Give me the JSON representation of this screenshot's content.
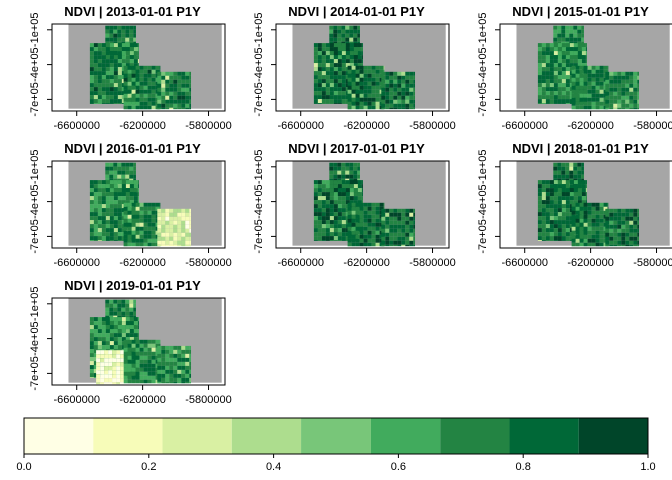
{
  "chart_data": {
    "type": "heatmap",
    "variable": "NDVI",
    "panels": [
      {
        "title": "NDVI | 2013-01-01 P1Y",
        "year": 2013,
        "mean_ndvi": 0.76,
        "patches": []
      },
      {
        "title": "NDVI | 2014-01-01 P1Y",
        "year": 2014,
        "mean_ndvi": 0.8,
        "patches": []
      },
      {
        "title": "NDVI | 2015-01-01 P1Y",
        "year": 2015,
        "mean_ndvi": 0.74,
        "patches": []
      },
      {
        "title": "NDVI | 2016-01-01 P1Y",
        "year": 2016,
        "mean_ndvi": 0.74,
        "patches": [
          {
            "tile": "east",
            "value": 0.3
          }
        ]
      },
      {
        "title": "NDVI | 2017-01-01 P1Y",
        "year": 2017,
        "mean_ndvi": 0.8,
        "patches": []
      },
      {
        "title": "NDVI | 2018-01-01 P1Y",
        "year": 2018,
        "mean_ndvi": 0.8,
        "patches": []
      },
      {
        "title": "NDVI | 2019-01-01 P1Y",
        "year": 2019,
        "mean_ndvi": 0.72,
        "patches": [
          {
            "tile": "southwest",
            "value": 0.15
          }
        ]
      }
    ],
    "x_ticks": [
      "-6600000",
      "-6200000",
      "-5800000"
    ],
    "x_tick_values": [
      -6600000,
      -6200000,
      -5800000
    ],
    "y_ticks": [
      "-7e+05",
      "-4e+05",
      "-1e+05"
    ],
    "y_tick_values": [
      -700000,
      -400000,
      -100000
    ],
    "xlim": [
      -6750000,
      -5700000
    ],
    "ylim": [
      -800000,
      -50000
    ],
    "extent_x": [
      -6650000,
      -5720000
    ],
    "extent_y": [
      -780000,
      -40000
    ],
    "nodata_color": "#a6a6a6",
    "colorbar": {
      "breaks": [
        0,
        0.111,
        0.222,
        0.333,
        0.444,
        0.556,
        0.667,
        0.778,
        0.889,
        1.0
      ],
      "colors": [
        "#ffffe5",
        "#f7fcb9",
        "#d9f0a3",
        "#addd8e",
        "#78c679",
        "#41ab5d",
        "#238443",
        "#006837",
        "#004529"
      ],
      "tick_labels": [
        "0.0",
        "0.2",
        "0.4",
        "0.6",
        "0.8",
        "1.0"
      ],
      "tick_values": [
        0,
        0.2,
        0.4,
        0.6,
        0.8,
        1.0
      ]
    }
  }
}
